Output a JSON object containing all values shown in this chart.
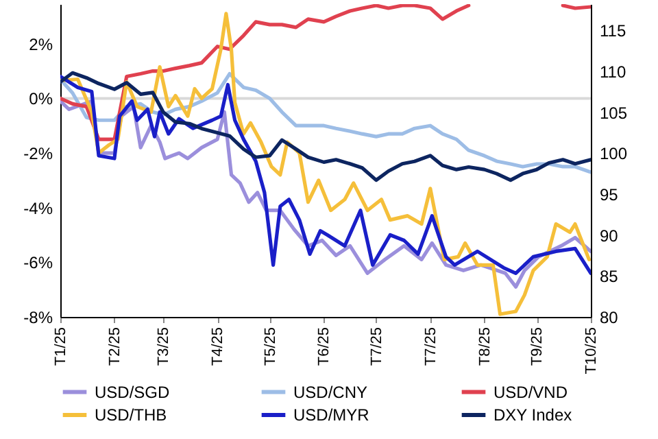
{
  "chart_data": {
    "type": "line",
    "x": [
      "2025-01-01",
      "2025-01-08",
      "2025-01-16",
      "2025-01-23",
      "2025-02-01",
      "2025-02-08",
      "2025-02-16",
      "2025-02-23",
      "2025-03-01",
      "2025-03-08",
      "2025-03-16",
      "2025-03-23",
      "2025-04-01",
      "2025-04-08",
      "2025-04-16",
      "2025-04-23",
      "2025-05-01",
      "2025-05-08",
      "2025-05-16",
      "2025-05-23",
      "2025-06-01",
      "2025-06-08",
      "2025-06-16",
      "2025-06-23",
      "2025-07-01",
      "2025-07-08",
      "2025-07-16",
      "2025-07-23",
      "2025-08-01",
      "2025-08-08",
      "2025-08-16",
      "2025-08-23",
      "2025-09-01",
      "2025-09-08",
      "2025-09-16",
      "2025-09-23",
      "2025-10-01",
      "2025-10-08",
      "2025-10-16",
      "2025-10-23",
      "2025-11-01"
    ],
    "series": [
      {
        "name": "USD/SGD",
        "color": "#9b8fdc",
        "x": [
          "2025-01-01",
          "2025-01-06",
          "2025-01-19",
          "2025-01-23",
          "2025-02-01",
          "2025-02-05",
          "2025-02-12",
          "2025-02-16",
          "2025-02-22",
          "2025-02-27",
          "2025-03-02",
          "2025-03-10",
          "2025-03-15",
          "2025-03-23",
          "2025-04-01",
          "2025-04-05",
          "2025-04-09",
          "2025-04-14",
          "2025-04-19",
          "2025-04-24",
          "2025-04-29",
          "2025-05-07",
          "2025-05-15",
          "2025-05-23",
          "2025-05-31",
          "2025-06-08",
          "2025-06-16",
          "2025-06-26",
          "2025-07-06",
          "2025-07-17",
          "2025-07-27",
          "2025-08-02",
          "2025-08-10",
          "2025-08-20",
          "2025-08-30",
          "2025-09-13",
          "2025-09-19",
          "2025-09-24",
          "2025-10-02",
          "2025-10-15",
          "2025-10-23",
          "2025-11-01"
        ],
        "values": [
          -0.1,
          -0.4,
          -0.1,
          -2.0,
          -2.0,
          -0.65,
          -0.3,
          -1.8,
          -1.0,
          -1.6,
          -2.2,
          -2.0,
          -2.2,
          -1.8,
          -1.5,
          -0.5,
          -2.8,
          -3.1,
          -3.8,
          -3.45,
          -4.1,
          -4.1,
          -4.8,
          -5.4,
          -5.2,
          -5.75,
          -5.4,
          -6.4,
          -5.9,
          -5.4,
          -5.9,
          -5.3,
          -6.1,
          -6.3,
          -6.1,
          -6.4,
          -6.9,
          -6.3,
          -5.8,
          -5.4,
          -5.1,
          -5.6
        ]
      },
      {
        "name": "USD/CNY",
        "color": "#9dbde6",
        "values": [
          0.7,
          0.2,
          -0.7,
          -0.8,
          -0.8,
          -0.3,
          -0.2,
          -0.5,
          -0.6,
          -0.4,
          -0.3,
          -0.1,
          0.2,
          0.9,
          0.4,
          0.3,
          0.0,
          -0.5,
          -1.0,
          -1.0,
          -1.0,
          -1.1,
          -1.2,
          -1.3,
          -1.4,
          -1.3,
          -1.3,
          -1.1,
          -1.0,
          -1.3,
          -1.5,
          -1.9,
          -2.1,
          -2.3,
          -2.4,
          -2.5,
          -2.4,
          -2.4,
          -2.5,
          -2.5,
          -2.7
        ]
      },
      {
        "name": "USD/VND",
        "color": "#e0414f",
        "values": [
          0,
          -0.2,
          -0.3,
          -1.5,
          -1.5,
          0.8,
          0.9,
          1.0,
          1.0,
          1.1,
          1.2,
          1.3,
          1.9,
          1.8,
          2.3,
          2.8,
          2.7,
          2.7,
          2.6,
          2.9,
          2.8,
          3.0,
          3.2,
          3.3,
          3.4,
          3.3,
          3.4,
          3.4,
          3.3,
          2.9,
          3.2,
          3.4,
          null,
          null,
          null,
          null,
          null,
          null,
          3.4,
          3.3,
          3.35
        ]
      },
      {
        "name": "USD/THB",
        "color": "#f5bf3a",
        "x": [
          "2025-01-01",
          "2025-01-11",
          "2025-01-19",
          "2025-01-23",
          "2025-01-29",
          "2025-02-03",
          "2025-02-08",
          "2025-02-14",
          "2025-02-22",
          "2025-02-27",
          "2025-03-04",
          "2025-03-08",
          "2025-03-15",
          "2025-03-19",
          "2025-03-23",
          "2025-03-29",
          "2025-04-03",
          "2025-04-06",
          "2025-04-09",
          "2025-04-11",
          "2025-04-16",
          "2025-04-20",
          "2025-04-26",
          "2025-05-02",
          "2025-05-07",
          "2025-05-11",
          "2025-05-18",
          "2025-05-23",
          "2025-05-29",
          "2025-06-05",
          "2025-06-13",
          "2025-06-18",
          "2025-06-26",
          "2025-07-04",
          "2025-07-09",
          "2025-07-19",
          "2025-07-27",
          "2025-08-01",
          "2025-08-05",
          "2025-08-09",
          "2025-08-17",
          "2025-08-21",
          "2025-08-28",
          "2025-09-06",
          "2025-09-10",
          "2025-09-19",
          "2025-09-24",
          "2025-09-29",
          "2025-10-07",
          "2025-10-12",
          "2025-10-20",
          "2025-10-23",
          "2025-10-31"
        ],
        "values": [
          0.65,
          0.7,
          -0.5,
          -2.0,
          -1.7,
          -1.5,
          0.6,
          -0.3,
          -0.5,
          1.15,
          -0.3,
          0.1,
          -0.65,
          0.35,
          0,
          0.35,
          1.8,
          3.1,
          1.8,
          -0.15,
          -1.3,
          -0.9,
          -1.6,
          -2.5,
          -2.8,
          -1.6,
          -2.0,
          -3.8,
          -3.0,
          -4.1,
          -3.7,
          -3.1,
          -4.1,
          -3.7,
          -4.45,
          -4.3,
          -4.6,
          -3.3,
          -4.6,
          -5.9,
          -5.8,
          -5.3,
          -6.1,
          -6.1,
          -7.9,
          -7.8,
          -7.2,
          -6.3,
          -5.8,
          -4.6,
          -4.9,
          -4.6,
          -5.9
        ]
      },
      {
        "name": "USD/MYR",
        "color": "#1a1fc8",
        "x": [
          "2025-01-01",
          "2025-01-11",
          "2025-01-19",
          "2025-01-23",
          "2025-02-01",
          "2025-02-04",
          "2025-02-11",
          "2025-02-14",
          "2025-02-20",
          "2025-02-24",
          "2025-02-27",
          "2025-03-04",
          "2025-03-10",
          "2025-03-18",
          "2025-03-29",
          "2025-04-03",
          "2025-04-07",
          "2025-04-11",
          "2025-04-16",
          "2025-04-23",
          "2025-04-28",
          "2025-05-03",
          "2025-05-07",
          "2025-05-12",
          "2025-05-18",
          "2025-05-24",
          "2025-05-30",
          "2025-06-03",
          "2025-06-13",
          "2025-06-22",
          "2025-06-29",
          "2025-07-09",
          "2025-07-17",
          "2025-07-25",
          "2025-08-02",
          "2025-08-10",
          "2025-08-15",
          "2025-08-28",
          "2025-09-12",
          "2025-09-19",
          "2025-09-29",
          "2025-10-12",
          "2025-10-23",
          "2025-11-01"
        ],
        "values": [
          0.8,
          0.4,
          0.25,
          -2.1,
          -2.2,
          -0.65,
          -0.1,
          -0.8,
          -0.4,
          -1.4,
          -0.5,
          -1.3,
          -0.75,
          -1.1,
          -0.8,
          -0.65,
          0.5,
          -0.8,
          -1.5,
          -2.3,
          -3.45,
          -6.1,
          -3.95,
          -3.7,
          -4.45,
          -5.7,
          -4.85,
          -5.0,
          -5.4,
          -4.1,
          -6.1,
          -5.0,
          -5.2,
          -5.7,
          -4.3,
          -5.8,
          -6.1,
          -5.6,
          -6.2,
          -6.4,
          -5.8,
          -5.6,
          -5.5,
          -6.4
        ]
      },
      {
        "name": "DXY Index",
        "color": "#0d2560",
        "axis": "y2",
        "values": [
          108.7,
          109.8,
          109.2,
          108.5,
          107.8,
          108.6,
          107.2,
          107.4,
          105,
          103.8,
          103.6,
          103,
          102.5,
          102.1,
          100.5,
          99.5,
          99.7,
          101.6,
          100.5,
          99.5,
          98.9,
          99.2,
          98.7,
          98.2,
          96.7,
          97.8,
          98.7,
          99,
          99.7,
          98.5,
          98,
          98.3,
          98,
          97.5,
          96.7,
          97.5,
          98,
          98.8,
          99.2,
          98.7,
          99.2
        ]
      }
    ],
    "xlim": [
      "2025-01-01",
      "2025-11-01"
    ],
    "xticks": [
      {
        "value": "2025-01-01",
        "label": "T1/25"
      },
      {
        "value": "2025-02-01",
        "label": "T2/25"
      },
      {
        "value": "2025-03-01",
        "label": "T3/25"
      },
      {
        "value": "2025-04-01",
        "label": "T4/25"
      },
      {
        "value": "2025-05-01",
        "label": "T5/25"
      },
      {
        "value": "2025-06-01",
        "label": "T6/25"
      },
      {
        "value": "2025-07-01",
        "label": "T7/25"
      },
      {
        "value": "2025-08-01",
        "label": "T7/25"
      },
      {
        "value": "2025-09-01",
        "label": "T8/25"
      },
      {
        "value": "2025-10-01",
        "label": "T9/25"
      },
      {
        "value": "2025-11-01",
        "label": "T10/25"
      }
    ],
    "ylim": [
      -8,
      3.45
    ],
    "yticks": [
      {
        "value": -8,
        "label": "-8%"
      },
      {
        "value": -6,
        "label": "-6%"
      },
      {
        "value": -4,
        "label": "-4%"
      },
      {
        "value": -2,
        "label": "-2%"
      },
      {
        "value": 0,
        "label": "0%"
      },
      {
        "value": 2,
        "label": "2%"
      }
    ],
    "y2lim": [
      80,
      118.2
    ],
    "y2ticks": [
      80,
      85,
      90,
      95,
      100,
      105,
      110,
      115
    ],
    "ref_lines": [
      {
        "axis": "y",
        "value": 0,
        "color": "#d9d9d9"
      }
    ],
    "legend": "bottom"
  }
}
